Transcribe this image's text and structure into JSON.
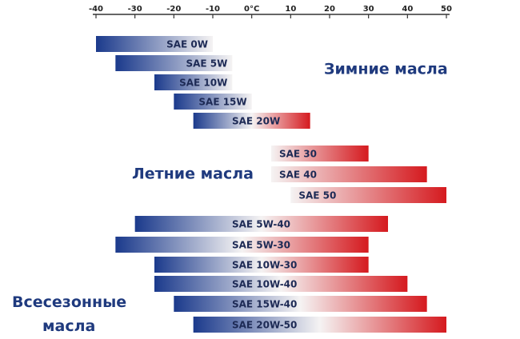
{
  "chart_data": {
    "type": "range-bar",
    "xlim": [
      -40,
      50
    ],
    "xticks": [
      -40,
      -30,
      -20,
      -10,
      {
        "value": 0,
        "label": "0°C"
      },
      10,
      20,
      30,
      40,
      50
    ],
    "colors": {
      "cold": "#1b3a8c",
      "neutral": "#f5f3f3",
      "warm": "#d51a1f"
    },
    "groups": [
      {
        "name": "Зимние масла",
        "bars": [
          {
            "label": "SAE 0W",
            "low": -40,
            "high": -10
          },
          {
            "label": "SAE 5W",
            "low": -35,
            "high": -5
          },
          {
            "label": "SAE 10W",
            "low": -25,
            "high": -5
          },
          {
            "label": "SAE 15W",
            "low": -20,
            "high": 0
          },
          {
            "label": "SAE 20W",
            "low": -15,
            "high": 15
          }
        ]
      },
      {
        "name": "Летние масла",
        "bars": [
          {
            "label": "SAE 30",
            "low": 5,
            "high": 30
          },
          {
            "label": "SAE 40",
            "low": 5,
            "high": 45
          },
          {
            "label": "SAE 50",
            "low": 10,
            "high": 50
          }
        ]
      },
      {
        "name": "Всесезонные масла",
        "bars": [
          {
            "label": "SAE 5W-40",
            "low": -30,
            "high": 35
          },
          {
            "label": "SAE 5W-30",
            "low": -35,
            "high": 30
          },
          {
            "label": "SAE 10W-30",
            "low": -25,
            "high": 30
          },
          {
            "label": "SAE 10W-40",
            "low": -25,
            "high": 40
          },
          {
            "label": "SAE 15W-40",
            "low": -20,
            "high": 45
          },
          {
            "label": "SAE 20W-50",
            "low": -15,
            "high": 50
          }
        ]
      }
    ]
  }
}
